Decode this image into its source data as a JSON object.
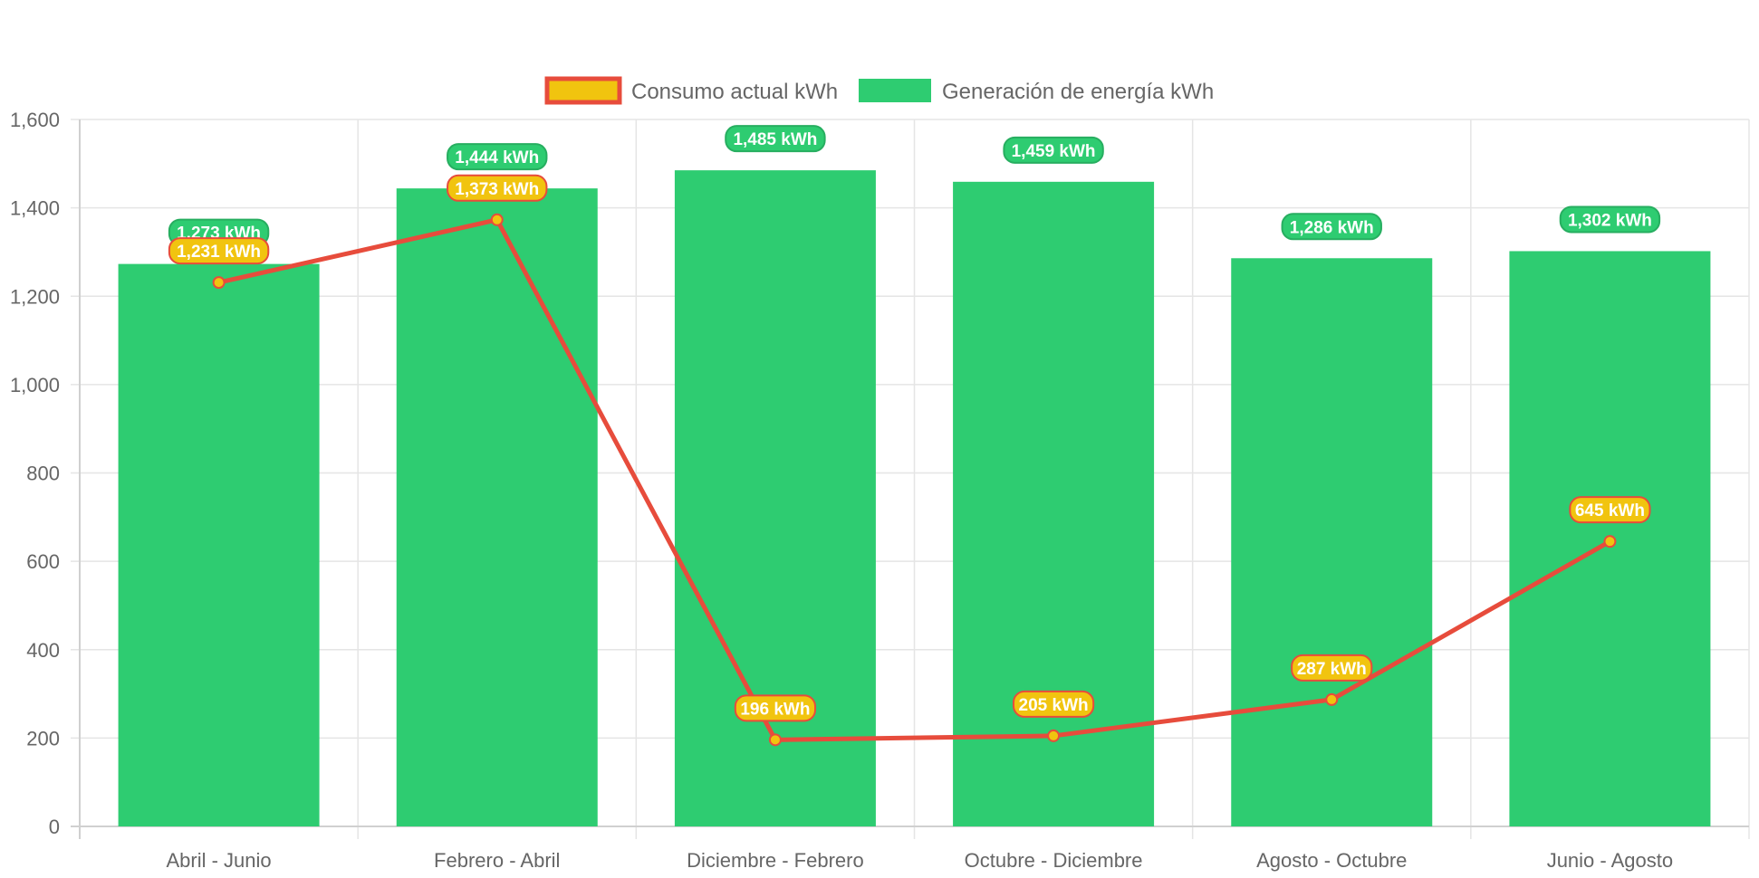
{
  "chart_data": {
    "type": "bar",
    "title": "",
    "xlabel": "",
    "ylabel": "",
    "categories": [
      "Abril - Junio",
      "Febrero - Abril",
      "Diciembre - Febrero",
      "Octubre - Diciembre",
      "Agosto - Octubre",
      "Junio - Agosto"
    ],
    "ylim": [
      0,
      1600
    ],
    "yticks": [
      0,
      200,
      400,
      600,
      800,
      1000,
      1200,
      1400,
      1600
    ],
    "ytick_labels": [
      "0",
      "200",
      "400",
      "600",
      "800",
      "1,000",
      "1,200",
      "1,400",
      "1,600"
    ],
    "grid": true,
    "legend_position": "top",
    "series": [
      {
        "name": "Consumo actual kWh",
        "type": "line",
        "color": "#e74c3c",
        "fill_color": "#f1c40f",
        "values": [
          1231,
          1373,
          196,
          205,
          287,
          645
        ],
        "data_labels": [
          "1,231 kWh",
          "1,373 kWh",
          "196 kWh",
          "205 kWh",
          "287 kWh",
          "645 kWh"
        ]
      },
      {
        "name": "Generación de energía kWh",
        "type": "bar",
        "color": "#2ecc71",
        "values": [
          1273,
          1444,
          1485,
          1459,
          1286,
          1302
        ],
        "data_labels": [
          "1,273 kWh",
          "1,444 kWh",
          "1,485 kWh",
          "1,459 kWh",
          "1,286 kWh",
          "1,302 kWh"
        ]
      }
    ]
  }
}
